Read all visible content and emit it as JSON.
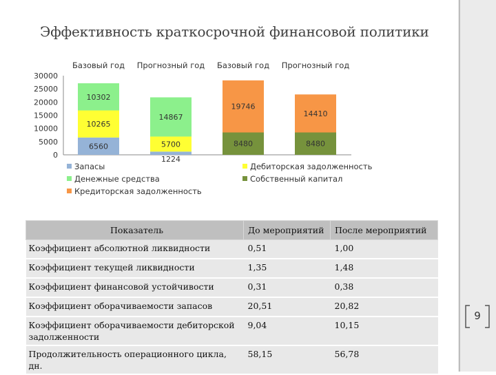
{
  "slide": {
    "title": "Эффективность краткосрочной финансовой политики",
    "page_number": "9"
  },
  "chart_data": {
    "type": "bar",
    "stacked": true,
    "categories": [
      "Базовый год",
      "Прогнозный год",
      "Базовый год",
      "Прогнозный год"
    ],
    "ylim": [
      0,
      30000
    ],
    "yticks": [
      0,
      5000,
      10000,
      15000,
      20000,
      25000,
      30000
    ],
    "grid": false,
    "legend_position": "bottom",
    "series": [
      {
        "name": "Запасы",
        "color": "#95b3d7",
        "values": [
          6560,
          1224,
          null,
          null
        ]
      },
      {
        "name": "Дебиторская задолженность",
        "color": "#ffff33",
        "values": [
          10265,
          5700,
          null,
          null
        ]
      },
      {
        "name": "Денежные средства",
        "color": "#8cf08c",
        "values": [
          10302,
          14867,
          null,
          null
        ]
      },
      {
        "name": "Собственный капитал",
        "color": "#76923c",
        "values": [
          null,
          null,
          8480,
          8480
        ]
      },
      {
        "name": "Кредиторская задолженность",
        "color": "#f79646",
        "values": [
          null,
          null,
          19746,
          14410
        ]
      }
    ],
    "legend_order": [
      "Запасы",
      "Дебиторская задолженность",
      "Денежные средства",
      "Собственный капитал",
      "Кредиторская задолженность"
    ]
  },
  "table": {
    "headers": [
      "Показатель",
      "До мероприятий",
      "После мероприятий"
    ],
    "rows": [
      {
        "label": "Коэффициент абсолютной ликвидности",
        "before": "0,51",
        "after": "1,00"
      },
      {
        "label": "Коэффициент текущей ликвидности",
        "before": "1,35",
        "after": "1,48"
      },
      {
        "label": "Коэффициент финансовой устойчивости",
        "before": "0,31",
        "after": "0,38"
      },
      {
        "label": "Коэффициент оборачиваемости запасов",
        "before": "20,51",
        "after": "20,82"
      },
      {
        "label": "Коэффициент оборачиваемости дебиторской задолженности",
        "before": "9,04",
        "after": "10,15"
      },
      {
        "label": "Продолжительность операционного цикла, дн.",
        "before": "58,15",
        "after": "56,78"
      }
    ]
  }
}
